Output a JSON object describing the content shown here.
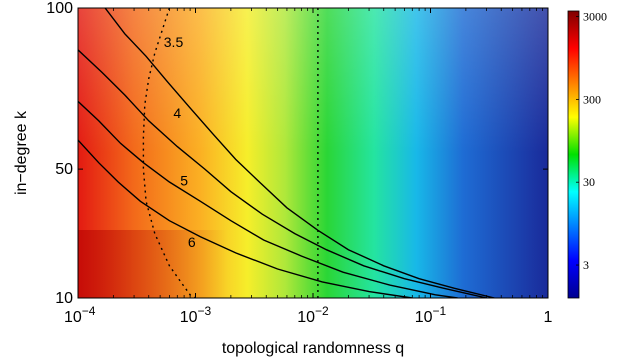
{
  "chart_data": {
    "type": "heatmap",
    "xlabel": "topological randomness q",
    "ylabel": "in−degree k",
    "x_scale": "log",
    "xlim": [
      0.0001,
      1
    ],
    "ylim": [
      10,
      100
    ],
    "x_ticks": [
      {
        "value": 0.0001,
        "base": "10",
        "exp": "−4"
      },
      {
        "value": 0.001,
        "base": "10",
        "exp": "−3"
      },
      {
        "value": 0.01,
        "base": "10",
        "exp": "−2"
      },
      {
        "value": 0.1,
        "base": "10",
        "exp": "−1"
      },
      {
        "value": 1,
        "label": "1"
      }
    ],
    "y_ticks": [
      {
        "value": 10,
        "label": "10"
      },
      {
        "value": 50,
        "label": "50"
      },
      {
        "value": 100,
        "label": "100"
      }
    ],
    "colorbar": {
      "scale": "log",
      "range": [
        1.2,
        3500
      ],
      "colormap": "jet",
      "ticks": [
        {
          "value": 3000,
          "label": "3000"
        },
        {
          "value": 300,
          "label": "300"
        },
        {
          "value": 30,
          "label": "30"
        },
        {
          "value": 3,
          "label": "3"
        }
      ]
    },
    "contours": [
      {
        "label": "3.5",
        "label_at": [
          0.00065,
          89
        ],
        "points": [
          [
            0.00017,
            100
          ],
          [
            0.00025,
            92
          ],
          [
            0.00038,
            85
          ],
          [
            0.00058,
            77
          ],
          [
            0.0009,
            69
          ],
          [
            0.0014,
            61
          ],
          [
            0.0022,
            53
          ],
          [
            0.0035,
            46
          ],
          [
            0.006,
            38
          ],
          [
            0.011,
            31
          ],
          [
            0.02,
            25
          ],
          [
            0.04,
            20
          ],
          [
            0.08,
            16
          ],
          [
            0.16,
            13
          ],
          [
            0.35,
            10
          ]
        ]
      },
      {
        "label": "4",
        "label_at": [
          0.0007,
          67
        ],
        "points": [
          [
            0.0001,
            87
          ],
          [
            0.00016,
            80
          ],
          [
            0.00025,
            73
          ],
          [
            0.0004,
            65
          ],
          [
            0.0007,
            57
          ],
          [
            0.0012,
            50
          ],
          [
            0.002,
            43
          ],
          [
            0.0037,
            36
          ],
          [
            0.007,
            30
          ],
          [
            0.013,
            25
          ],
          [
            0.027,
            20
          ],
          [
            0.06,
            16
          ],
          [
            0.13,
            13
          ],
          [
            0.3,
            10
          ]
        ]
      },
      {
        "label": "5",
        "label_at": [
          0.0008,
          46
        ],
        "points": [
          [
            0.0001,
            71
          ],
          [
            0.00015,
            65
          ],
          [
            0.00023,
            58
          ],
          [
            0.00036,
            52
          ],
          [
            0.0006,
            46
          ],
          [
            0.0011,
            40
          ],
          [
            0.002,
            34
          ],
          [
            0.0038,
            28
          ],
          [
            0.008,
            23
          ],
          [
            0.018,
            18
          ],
          [
            0.045,
            14
          ],
          [
            0.11,
            11
          ],
          [
            0.17,
            10
          ]
        ]
      },
      {
        "label": "6",
        "label_at": [
          0.00093,
          27
        ],
        "points": [
          [
            0.0001,
            59
          ],
          [
            0.00015,
            52
          ],
          [
            0.00022,
            46
          ],
          [
            0.00034,
            40
          ],
          [
            0.0006,
            34
          ],
          [
            0.0011,
            29
          ],
          [
            0.0022,
            24
          ],
          [
            0.005,
            19
          ],
          [
            0.012,
            15
          ],
          [
            0.03,
            12
          ],
          [
            0.07,
            10
          ]
        ]
      }
    ],
    "dotted_boundaries": [
      {
        "points": [
          [
            0.0006,
            100
          ],
          [
            0.00052,
            93
          ],
          [
            0.00045,
            86
          ],
          [
            0.0004,
            78
          ],
          [
            0.00037,
            70
          ],
          [
            0.00036,
            60
          ],
          [
            0.00036,
            50
          ],
          [
            0.00038,
            40
          ],
          [
            0.00045,
            30
          ],
          [
            0.0006,
            20
          ],
          [
            0.00075,
            15
          ],
          [
            0.0009,
            11
          ],
          [
            0.001,
            10
          ]
        ]
      },
      {
        "points": [
          [
            0.011,
            100
          ],
          [
            0.011,
            10
          ]
        ]
      }
    ]
  }
}
